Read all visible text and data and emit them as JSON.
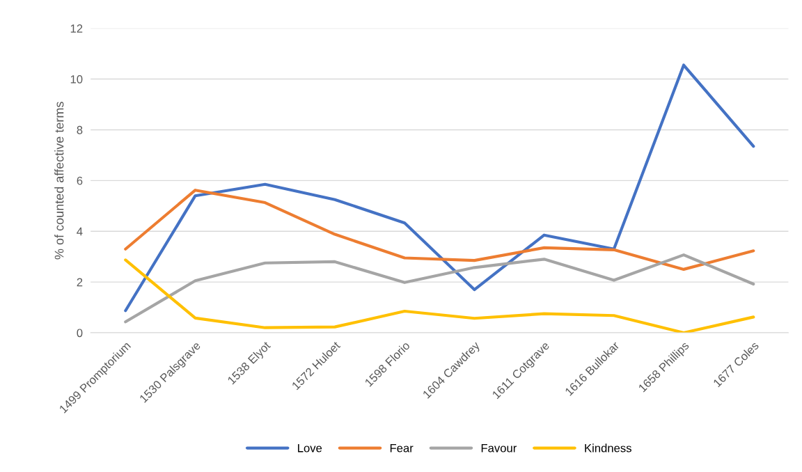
{
  "chart_data": {
    "type": "line",
    "ylabel": "% of counted affective terms",
    "categories": [
      "1499 Promptorium",
      "1530 Palsgrave",
      "1538 Elyot",
      "1572 Huloet",
      "1598 Florio",
      "1604 Cawdrey",
      "1611 Cotgrave",
      "1616 Bullokar",
      "1658 Phillips",
      "1677 Coles"
    ],
    "series": [
      {
        "name": "Love",
        "color": "#4472c4",
        "values": [
          0.87,
          5.4,
          5.85,
          5.25,
          4.33,
          1.7,
          3.85,
          3.3,
          10.55,
          7.35
        ]
      },
      {
        "name": "Fear",
        "color": "#ed7d31",
        "values": [
          3.3,
          5.62,
          5.13,
          3.88,
          2.95,
          2.85,
          3.35,
          3.27,
          2.5,
          3.23
        ]
      },
      {
        "name": "Favour",
        "color": "#a5a5a5",
        "values": [
          0.43,
          2.05,
          2.75,
          2.8,
          1.98,
          2.57,
          2.9,
          2.07,
          3.07,
          1.92
        ]
      },
      {
        "name": "Kindness",
        "color": "#ffc000",
        "values": [
          2.87,
          0.58,
          0.2,
          0.23,
          0.85,
          0.57,
          0.75,
          0.68,
          0.0,
          0.62
        ]
      }
    ],
    "ylim": [
      0,
      12
    ],
    "yticks": [
      0,
      2,
      4,
      6,
      8,
      10,
      12
    ],
    "grid": "y",
    "legend": "bottom",
    "marker": "none",
    "line_style": "solid"
  }
}
